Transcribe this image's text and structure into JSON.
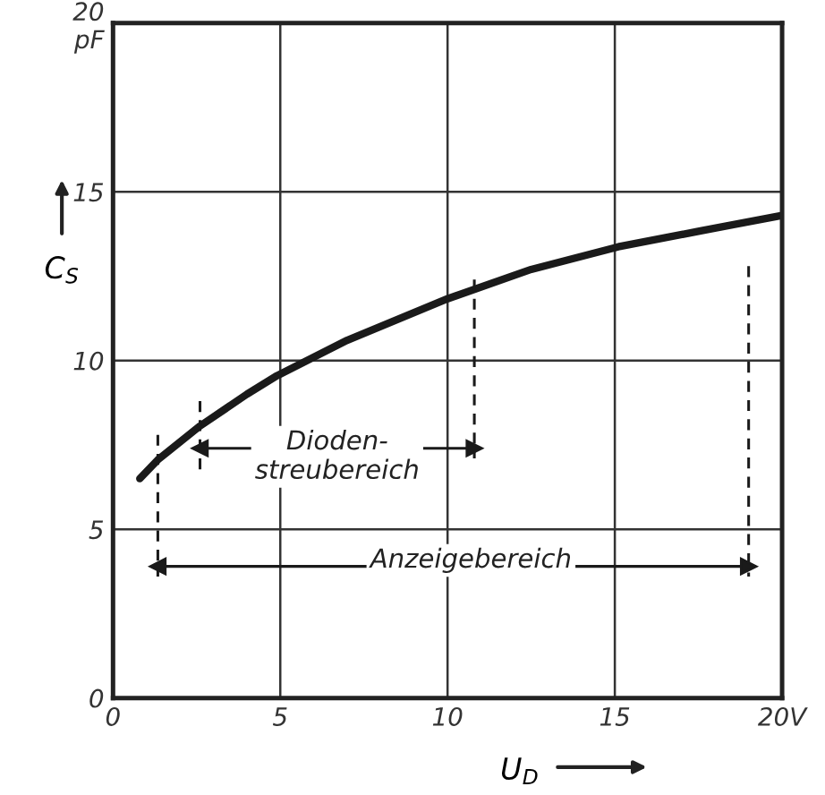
{
  "chart_data": {
    "type": "line",
    "xlabel": "U$_{D}$",
    "ylabel": "C$_{S}$",
    "xlim": [
      0,
      20
    ],
    "ylim": [
      0,
      20
    ],
    "xticks": [
      0,
      5,
      10,
      15,
      {
        "value": 20,
        "label": "20V"
      }
    ],
    "yticks": [
      0,
      5,
      10,
      15,
      {
        "value": 20,
        "label": "20\npF"
      }
    ],
    "grid": true,
    "series": [
      {
        "color": "#1a1a1a",
        "x": [
          0.8,
          1.34,
          2.6,
          4,
          4.9,
          7,
          10,
          12.5,
          15.1,
          17.6,
          20
        ],
        "values": [
          6.5,
          7.06,
          8.06,
          9.0,
          9.55,
          10.6,
          11.83,
          12.7,
          13.37,
          13.85,
          14.3
        ]
      },
      {
        "color": "#1a1a1a",
        "line_style": "dashed",
        "x": [
          1.34,
          1.34
        ],
        "values": [
          7.8,
          3.6
        ]
      },
      {
        "color": "#1a1a1a",
        "line_style": "dashed",
        "x": [
          2.6,
          2.6
        ],
        "values": [
          8.8,
          6.7
        ]
      },
      {
        "color": "#1a1a1a",
        "line_style": "dashed",
        "x": [
          10.8,
          10.8
        ],
        "values": [
          12.4,
          7.1
        ]
      },
      {
        "color": "#1a1a1a",
        "line_style": "dashed",
        "x": [
          19.0,
          19.0
        ],
        "values": [
          12.8,
          3.6
        ]
      },
      {
        "color": "#1a1a1a",
        "marker": "triangle",
        "x": [
          2.6,
          10.8
        ],
        "values": [
          7.4,
          7.4
        ]
      },
      {
        "color": "#1a1a1a",
        "marker": "triangle",
        "x": [
          1.34,
          19.0
        ],
        "values": [
          3.9,
          3.9
        ]
      }
    ],
    "annotations": [
      {
        "text": "Dioden-\nstreubereich",
        "x": 6.7,
        "y": 7.4
      },
      {
        "text": "Anzeigebereich",
        "x": 10.7,
        "y": 3.9
      }
    ]
  }
}
